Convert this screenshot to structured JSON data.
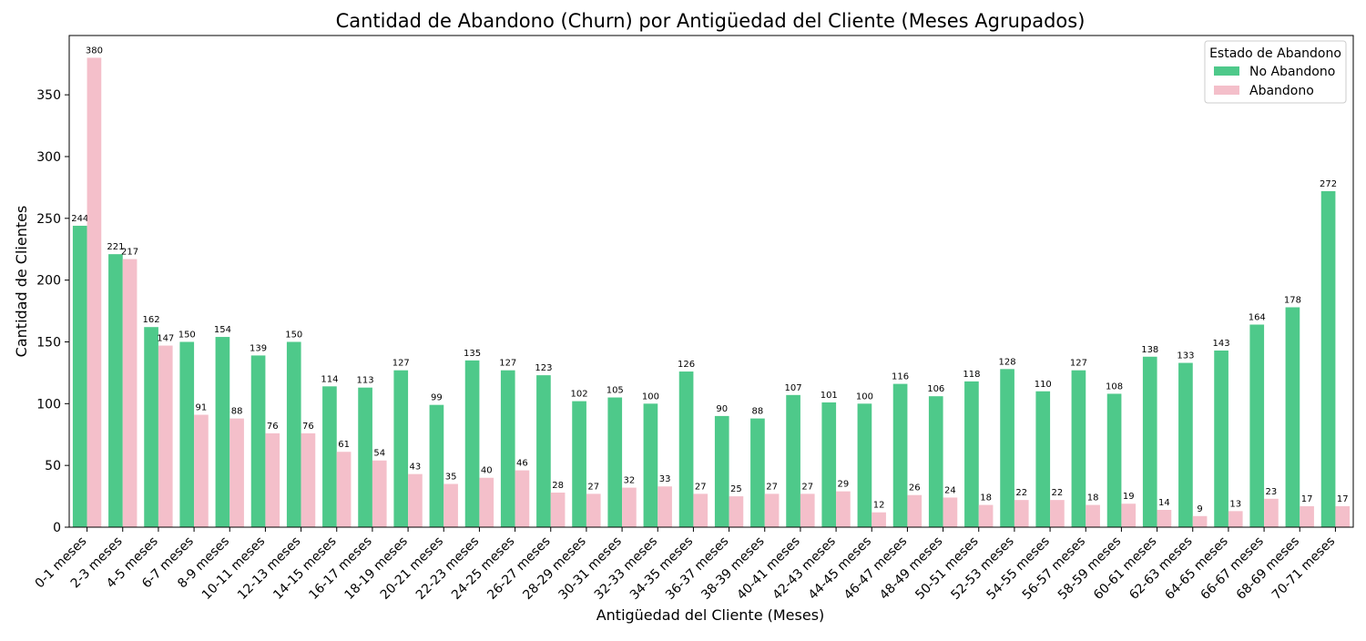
{
  "chart_data": {
    "type": "bar",
    "title": "Cantidad de Abandono (Churn) por Antigüedad del Cliente (Meses Agrupados)",
    "xlabel": "Antigüedad del Cliente (Meses)",
    "ylabel": "Cantidad de Clientes",
    "ylim": [
      0,
      398
    ],
    "yticks": [
      0,
      50,
      100,
      150,
      200,
      250,
      300,
      350
    ],
    "grid": false,
    "legend": {
      "title": "Estado de Abandono",
      "placement": "top-right"
    },
    "categories": [
      "0-1 meses",
      "2-3 meses",
      "4-5 meses",
      "6-7 meses",
      "8-9 meses",
      "10-11 meses",
      "12-13 meses",
      "14-15 meses",
      "16-17 meses",
      "18-19 meses",
      "20-21 meses",
      "22-23 meses",
      "24-25 meses",
      "26-27 meses",
      "28-29 meses",
      "30-31 meses",
      "32-33 meses",
      "34-35 meses",
      "36-37 meses",
      "38-39 meses",
      "40-41 meses",
      "42-43 meses",
      "44-45 meses",
      "46-47 meses",
      "48-49 meses",
      "50-51 meses",
      "52-53 meses",
      "54-55 meses",
      "56-57 meses",
      "58-59 meses",
      "60-61 meses",
      "62-63 meses",
      "64-65 meses",
      "66-67 meses",
      "68-69 meses",
      "70-71 meses"
    ],
    "series": [
      {
        "name": "No Abandono",
        "color": "#4ec98a",
        "values": [
          244,
          221,
          162,
          150,
          154,
          139,
          150,
          114,
          113,
          127,
          99,
          135,
          127,
          123,
          102,
          105,
          100,
          126,
          90,
          88,
          107,
          101,
          100,
          116,
          106,
          118,
          128,
          110,
          127,
          108,
          138,
          133,
          143,
          164,
          178,
          272
        ]
      },
      {
        "name": "Abandono",
        "color": "#f4bfca",
        "values": [
          380,
          217,
          147,
          91,
          88,
          76,
          76,
          61,
          54,
          43,
          35,
          40,
          46,
          28,
          27,
          32,
          33,
          27,
          25,
          27,
          27,
          29,
          12,
          26,
          24,
          18,
          22,
          22,
          18,
          19,
          14,
          9,
          13,
          23,
          17,
          17
        ]
      }
    ]
  }
}
